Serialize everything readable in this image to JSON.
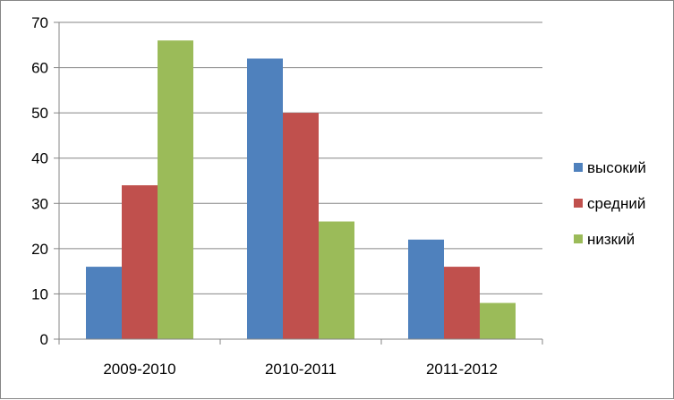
{
  "chart_data": {
    "type": "bar",
    "title": "",
    "xlabel": "",
    "ylabel": "",
    "categories": [
      "2009-2010",
      "2010-2011",
      "2011-2012"
    ],
    "series": [
      {
        "name": "высокий",
        "color": "#4F81BD",
        "values": [
          16,
          62,
          22
        ]
      },
      {
        "name": "средний",
        "color": "#C0504D",
        "values": [
          34,
          50,
          16
        ]
      },
      {
        "name": "низкий",
        "color": "#9BBB59",
        "values": [
          66,
          26,
          8
        ]
      }
    ],
    "ylim": [
      0,
      70
    ],
    "yticks": [
      "0",
      "10",
      "20",
      "30",
      "40",
      "50",
      "60",
      "70"
    ],
    "grid": true,
    "legend_position": "right"
  }
}
